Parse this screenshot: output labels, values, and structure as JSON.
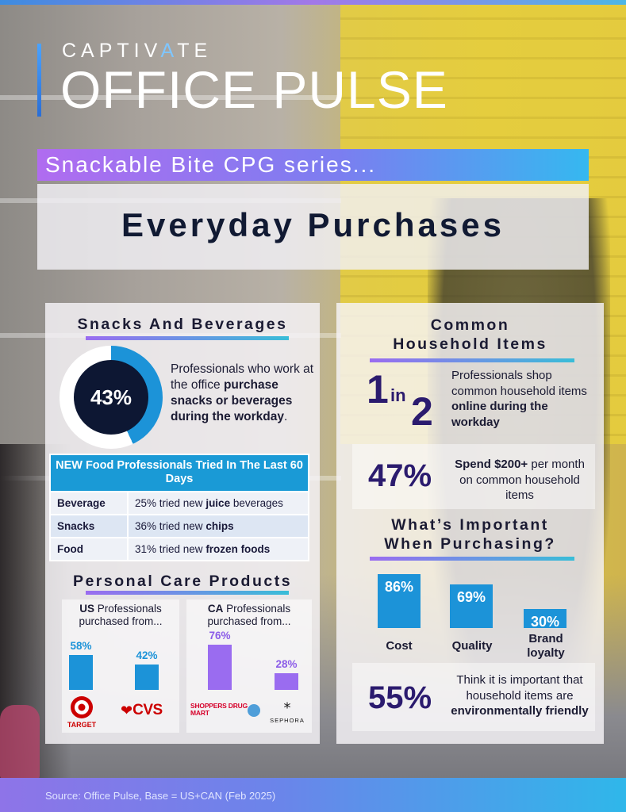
{
  "header": {
    "brand": "CAPTIVATE",
    "brand_accent_letter": "A",
    "title": "OFFICE PULSE",
    "series": "Snackable Bite CPG series...",
    "subject": "Everyday Purchases"
  },
  "snacks": {
    "title": "Snacks And Beverages",
    "donut_value": "43%",
    "donut_fraction": 0.43,
    "text_plain1": "Professionals who work at the office ",
    "text_bold": "purchase snacks or beverages during the workday",
    "text_plain2": "."
  },
  "food_table": {
    "header": "NEW Food Professionals Tried In The Last 60 Days",
    "rows": [
      {
        "category": "Beverage",
        "plain": "25% tried new ",
        "bold": "juice",
        "plain2": " beverages"
      },
      {
        "category": "Snacks",
        "plain": "36% tried new ",
        "bold": "chips",
        "plain2": ""
      },
      {
        "category": "Food",
        "plain": "31% tried new ",
        "bold": "frozen foods",
        "plain2": ""
      }
    ]
  },
  "personal_care": {
    "title": "Personal Care Products",
    "us": {
      "head_bold": "US",
      "head_plain": " Professionals purchased from...",
      "bars": [
        {
          "label": "58%",
          "value": 58,
          "logo": "TARGET"
        },
        {
          "label": "42%",
          "value": 42,
          "logo": "CVS"
        }
      ]
    },
    "ca": {
      "head_bold": "CA",
      "head_plain": " Professionals purchased from...",
      "bars": [
        {
          "label": "76%",
          "value": 76,
          "logo": "SHOPPERS DRUG MART"
        },
        {
          "label": "28%",
          "value": 28,
          "logo": "SEPHORA"
        }
      ]
    }
  },
  "household": {
    "title_line1": "Common",
    "title_line2": "Household Items",
    "one": "1",
    "in": "in",
    "two": "2",
    "stat1_plain": "Professionals shop common household items ",
    "stat1_bold": "online during the workday",
    "stat2_value": "47%",
    "stat2_bold": "Spend $200+",
    "stat2_plain": " per month on common household items"
  },
  "important": {
    "title_line1": "What’s Important",
    "title_line2": "When Purchasing?",
    "bars": [
      {
        "label": "86%",
        "value": 86,
        "name": "Cost"
      },
      {
        "label": "69%",
        "value": 69,
        "name": "Quality"
      },
      {
        "label": "30%",
        "value": 30,
        "name": "Brand loyalty"
      }
    ],
    "stat_value": "55%",
    "stat_plain": "Think it is important that household items are ",
    "stat_bold": "environmentally friendly"
  },
  "footer": {
    "source": "Source: Office Pulse, Base = US+CAN (Feb 2025)"
  },
  "colors": {
    "accent_blue": "#1c93d8",
    "accent_purple": "#9a6cf0",
    "stat_purple": "#2b1b6e",
    "navy": "#0d1733"
  }
}
